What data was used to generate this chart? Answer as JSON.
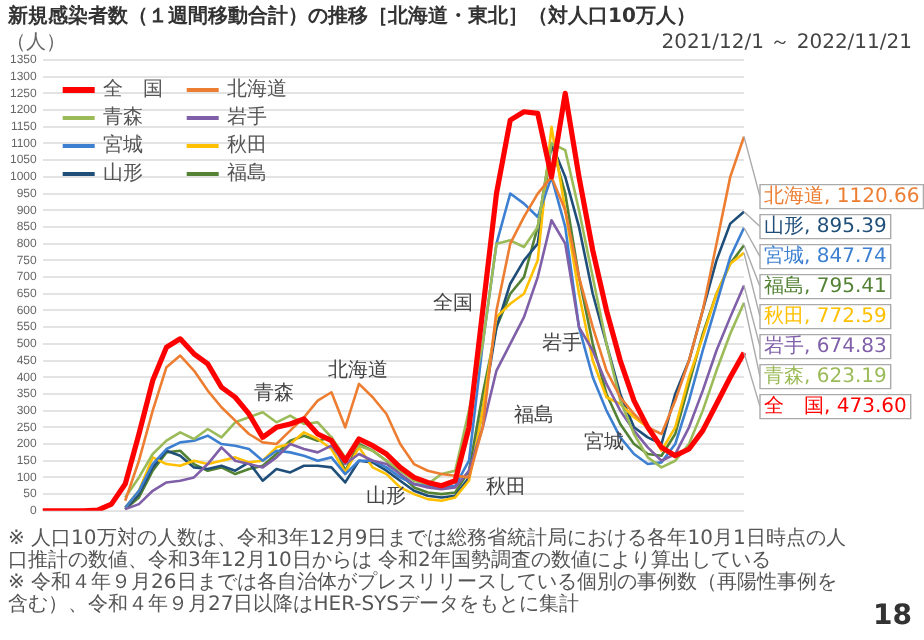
{
  "chart_data": {
    "type": "line",
    "title": "新規感染者数（１週間移動合計）の推移［北海道・東北］（対人口10万人）",
    "subtitle": "2021/12/1 ～ 2022/11/21",
    "ylabel": "（人）",
    "categories": [
      null,
      null,
      null,
      null,
      null,
      null,
      null,
      null,
      null,
      null,
      null,
      null,
      null,
      null,
      null,
      null,
      null,
      null,
      null,
      null,
      null,
      null,
      null,
      null,
      null,
      null,
      null,
      null,
      null,
      null,
      null,
      null,
      null,
      null,
      null,
      null,
      null,
      null,
      null,
      null,
      null,
      null,
      null,
      null,
      null,
      null,
      null,
      null,
      null,
      null,
      null,
      null
    ],
    "ylim": [
      0,
      1350
    ],
    "yticks": [
      0,
      50,
      100,
      150,
      200,
      250,
      300,
      350,
      400,
      450,
      500,
      550,
      600,
      650,
      700,
      750,
      800,
      850,
      900,
      950,
      1000,
      1050,
      1100,
      1150,
      1200,
      1250,
      1300,
      1350
    ],
    "grid": "y",
    "legend": "top left",
    "tick_labels": "y",
    "marker": "none",
    "series": [
      {
        "name": "全　国",
        "color": "#ff0000",
        "values": [
          0,
          0,
          0,
          0,
          2,
          20,
          80,
          230,
          390,
          490,
          515,
          470,
          440,
          370,
          340,
          290,
          220,
          250,
          260,
          275,
          230,
          210,
          150,
          215,
          195,
          170,
          130,
          100,
          85,
          75,
          90,
          250,
          600,
          950,
          1170,
          1195,
          1190,
          1000,
          1250,
          1000,
          780,
          600,
          450,
          330,
          250,
          190,
          165,
          185,
          240,
          320,
          400,
          473.6
        ],
        "value_labels": [
          null,
          null,
          null,
          null,
          null,
          null,
          null,
          null,
          null,
          null,
          null,
          null,
          null,
          null,
          null,
          null,
          null,
          null,
          null,
          null,
          null,
          null,
          null,
          null,
          null,
          null,
          null,
          null,
          null,
          null,
          null,
          null,
          null,
          null,
          null,
          null,
          null,
          null,
          null,
          null,
          null,
          null,
          null,
          null,
          null,
          null,
          null,
          null,
          null,
          null,
          null,
          "全　国, 473.60"
        ]
      },
      {
        "name": "北海道",
        "color": "#ed7d31",
        "values": [
          null,
          null,
          null,
          null,
          null,
          null,
          30,
          150,
          300,
          430,
          465,
          420,
          360,
          310,
          270,
          230,
          205,
          200,
          240,
          280,
          330,
          355,
          250,
          380,
          340,
          290,
          200,
          140,
          120,
          110,
          105,
          100,
          250,
          600,
          800,
          880,
          950,
          1000,
          900,
          700,
          550,
          420,
          340,
          290,
          250,
          230,
          330,
          450,
          600,
          800,
          1000,
          1120.66
        ],
        "value_labels": [
          null,
          null,
          null,
          null,
          null,
          null,
          null,
          null,
          null,
          null,
          null,
          null,
          null,
          null,
          null,
          null,
          null,
          null,
          null,
          null,
          null,
          null,
          null,
          null,
          null,
          null,
          null,
          null,
          null,
          null,
          null,
          null,
          null,
          null,
          null,
          null,
          null,
          null,
          null,
          null,
          null,
          null,
          null,
          null,
          null,
          null,
          null,
          null,
          null,
          null,
          null,
          "北海道, 1120.66"
        ]
      },
      {
        "name": "青森",
        "color": "#9bbb59",
        "values": [
          null,
          null,
          null,
          null,
          null,
          null,
          40,
          100,
          170,
          210,
          235,
          215,
          245,
          220,
          265,
          280,
          295,
          265,
          285,
          260,
          265,
          220,
          160,
          195,
          180,
          150,
          120,
          90,
          80,
          110,
          120,
          300,
          500,
          800,
          810,
          790,
          850,
          1100,
          1080,
          900,
          700,
          500,
          330,
          230,
          160,
          130,
          150,
          200,
          300,
          420,
          530,
          623.19
        ],
        "value_labels": [
          null,
          null,
          null,
          null,
          null,
          null,
          null,
          null,
          null,
          null,
          null,
          null,
          null,
          null,
          null,
          null,
          null,
          null,
          null,
          null,
          null,
          null,
          null,
          null,
          null,
          null,
          null,
          null,
          null,
          null,
          null,
          null,
          null,
          null,
          null,
          null,
          null,
          null,
          null,
          null,
          null,
          null,
          null,
          null,
          null,
          null,
          null,
          null,
          null,
          null,
          null,
          "青森, 623.19"
        ]
      },
      {
        "name": "岩手",
        "color": "#7f5fa8",
        "values": [
          null,
          null,
          null,
          null,
          null,
          null,
          5,
          20,
          60,
          85,
          90,
          100,
          140,
          190,
          150,
          140,
          130,
          160,
          200,
          185,
          175,
          195,
          140,
          170,
          150,
          140,
          110,
          80,
          70,
          65,
          70,
          120,
          250,
          420,
          500,
          580,
          700,
          870,
          800,
          550,
          480,
          380,
          300,
          240,
          190,
          150,
          170,
          250,
          360,
          480,
          580,
          674.83
        ],
        "value_labels": [
          null,
          null,
          null,
          null,
          null,
          null,
          null,
          null,
          null,
          null,
          null,
          null,
          null,
          null,
          null,
          null,
          null,
          null,
          null,
          null,
          null,
          null,
          null,
          null,
          null,
          null,
          null,
          null,
          null,
          null,
          null,
          null,
          null,
          null,
          null,
          null,
          null,
          null,
          null,
          null,
          null,
          null,
          null,
          null,
          null,
          null,
          null,
          null,
          null,
          null,
          null,
          "岩手, 674.83"
        ]
      },
      {
        "name": "宮城",
        "color": "#3d7fd0",
        "values": [
          null,
          null,
          null,
          null,
          null,
          null,
          10,
          60,
          140,
          185,
          205,
          210,
          225,
          200,
          195,
          185,
          150,
          180,
          175,
          165,
          150,
          160,
          110,
          150,
          150,
          130,
          100,
          80,
          75,
          70,
          75,
          150,
          500,
          800,
          950,
          920,
          880,
          1000,
          850,
          550,
          400,
          300,
          220,
          170,
          140,
          145,
          200,
          330,
          480,
          620,
          760,
          847.74
        ],
        "value_labels": [
          null,
          null,
          null,
          null,
          null,
          null,
          null,
          null,
          null,
          null,
          null,
          null,
          null,
          null,
          null,
          null,
          null,
          null,
          null,
          null,
          null,
          null,
          null,
          null,
          null,
          null,
          null,
          null,
          null,
          null,
          null,
          null,
          null,
          null,
          null,
          null,
          null,
          null,
          null,
          null,
          null,
          null,
          null,
          null,
          null,
          null,
          null,
          null,
          null,
          null,
          null,
          "宮城, 847.74"
        ]
      },
      {
        "name": "秋田",
        "color": "#ffc000",
        "values": [
          null,
          null,
          null,
          null,
          null,
          null,
          10,
          60,
          160,
          140,
          135,
          150,
          140,
          150,
          160,
          145,
          150,
          190,
          200,
          235,
          215,
          185,
          115,
          190,
          130,
          110,
          70,
          50,
          35,
          30,
          40,
          90,
          300,
          580,
          620,
          650,
          750,
          1150,
          900,
          650,
          450,
          340,
          320,
          280,
          250,
          180,
          250,
          400,
          520,
          650,
          740,
          772.59
        ],
        "value_labels": [
          null,
          null,
          null,
          null,
          null,
          null,
          null,
          null,
          null,
          null,
          null,
          null,
          null,
          null,
          null,
          null,
          null,
          null,
          null,
          null,
          null,
          null,
          null,
          null,
          null,
          null,
          null,
          null,
          null,
          null,
          null,
          null,
          null,
          null,
          null,
          null,
          null,
          null,
          null,
          null,
          null,
          null,
          null,
          null,
          null,
          null,
          null,
          null,
          null,
          null,
          null,
          "秋田, 772.59"
        ]
      },
      {
        "name": "山形",
        "color": "#1f4e79",
        "values": [
          null,
          null,
          null,
          null,
          null,
          null,
          5,
          50,
          130,
          180,
          165,
          130,
          125,
          135,
          120,
          145,
          90,
          125,
          115,
          135,
          135,
          130,
          85,
          150,
          145,
          120,
          90,
          60,
          45,
          40,
          45,
          100,
          300,
          550,
          680,
          750,
          800,
          1100,
          1000,
          850,
          650,
          500,
          350,
          250,
          220,
          200,
          350,
          450,
          600,
          750,
          860,
          895.39
        ],
        "value_labels": [
          null,
          null,
          null,
          null,
          null,
          null,
          null,
          null,
          null,
          null,
          null,
          null,
          null,
          null,
          null,
          null,
          null,
          null,
          null,
          null,
          null,
          null,
          null,
          null,
          null,
          null,
          null,
          null,
          null,
          null,
          null,
          null,
          null,
          null,
          null,
          null,
          null,
          null,
          null,
          null,
          null,
          null,
          null,
          null,
          null,
          null,
          null,
          null,
          null,
          null,
          null,
          "山形, 895.39"
        ]
      },
      {
        "name": "福島",
        "color": "#548235",
        "values": [
          null,
          null,
          null,
          null,
          null,
          null,
          5,
          40,
          120,
          175,
          180,
          140,
          120,
          130,
          110,
          125,
          135,
          170,
          210,
          225,
          210,
          220,
          120,
          200,
          180,
          150,
          110,
          70,
          55,
          50,
          55,
          120,
          350,
          550,
          650,
          700,
          850,
          1100,
          950,
          700,
          500,
          350,
          260,
          200,
          170,
          165,
          230,
          380,
          530,
          650,
          740,
          795.41
        ],
        "value_labels": [
          null,
          null,
          null,
          null,
          null,
          null,
          null,
          null,
          null,
          null,
          null,
          null,
          null,
          null,
          null,
          null,
          null,
          null,
          null,
          null,
          null,
          null,
          null,
          null,
          null,
          null,
          null,
          null,
          null,
          null,
          null,
          null,
          null,
          null,
          null,
          null,
          null,
          null,
          null,
          null,
          null,
          null,
          null,
          null,
          null,
          null,
          null,
          null,
          null,
          null,
          null,
          "福島, 795.41"
        ]
      }
    ],
    "annotations": [
      "全国",
      "北海道",
      "青森",
      "山形",
      "秋田",
      "福島",
      "岩手",
      "宮城",
      "※ 人口10万対の人数は、令和3年12月9日までは総務省統計局における各年10月1日時点の人口推計の数値、令和3年12月10日からは 令和2年国勢調査の数値により算出している",
      "※ 令和４年９月26日までは各自治体がプレスリリースしている個別の事例数（再陽性事例を含む）、令和４年９月27日以降はHER-SYSデータをもとに集計",
      "18"
    ]
  }
}
